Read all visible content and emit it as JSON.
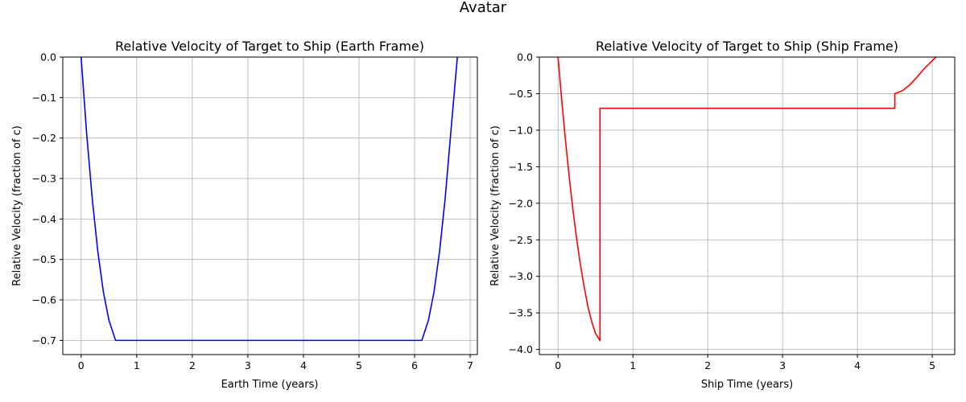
{
  "figure": {
    "suptitle": "Avatar"
  },
  "chart_data": [
    {
      "type": "line",
      "title": "Relative Velocity of Target to Ship (Earth Frame)",
      "xlabel": "Earth Time (years)",
      "ylabel": "Relative Velocity (fraction of c)",
      "xlim": [
        -0.33,
        7.13
      ],
      "ylim": [
        -0.735,
        0.0
      ],
      "xticks": [
        0,
        1,
        2,
        3,
        4,
        5,
        6,
        7
      ],
      "yticks": [
        0.0,
        -0.1,
        -0.2,
        -0.3,
        -0.4,
        -0.5,
        -0.6,
        -0.7
      ],
      "xtick_labels": [
        "0",
        "1",
        "2",
        "3",
        "4",
        "5",
        "6",
        "7"
      ],
      "ytick_labels": [
        "0.0",
        "−0.1",
        "−0.2",
        "−0.3",
        "−0.4",
        "−0.5",
        "−0.6",
        "−0.7"
      ],
      "grid": true,
      "series": [
        {
          "color": "#0000ff",
          "x": [
            0.0,
            0.1,
            0.2,
            0.3,
            0.4,
            0.5,
            0.62,
            1.0,
            2.0,
            3.0,
            4.0,
            5.0,
            6.0,
            6.13,
            6.25,
            6.35,
            6.45,
            6.55,
            6.65,
            6.77
          ],
          "y": [
            0.0,
            -0.19,
            -0.35,
            -0.48,
            -0.58,
            -0.65,
            -0.7,
            -0.7,
            -0.7,
            -0.7,
            -0.7,
            -0.7,
            -0.7,
            -0.7,
            -0.65,
            -0.58,
            -0.48,
            -0.35,
            -0.19,
            0.0
          ]
        }
      ]
    },
    {
      "type": "line",
      "title": "Relative Velocity of Target to Ship (Ship Frame)",
      "xlabel": "Ship Time (years)",
      "ylabel": "Relative Velocity (fraction of c)",
      "xlim": [
        -0.25,
        5.3
      ],
      "ylim": [
        -4.07,
        0.0
      ],
      "xticks": [
        0,
        1,
        2,
        3,
        4,
        5
      ],
      "yticks": [
        0.0,
        -0.5,
        -1.0,
        -1.5,
        -2.0,
        -2.5,
        -3.0,
        -3.5,
        -4.0
      ],
      "xtick_labels": [
        "0",
        "1",
        "2",
        "3",
        "4",
        "5"
      ],
      "ytick_labels": [
        "0.0",
        "−0.5",
        "−1.0",
        "−1.5",
        "−2.0",
        "−2.5",
        "−3.0",
        "−3.5",
        "−4.0"
      ],
      "grid": true,
      "series": [
        {
          "color": "#ff0000",
          "x": [
            0.0,
            0.05,
            0.1,
            0.15,
            0.2,
            0.25,
            0.3,
            0.35,
            0.4,
            0.45,
            0.5,
            0.55,
            0.56,
            0.56,
            1.0,
            2.0,
            3.0,
            4.0,
            4.5,
            4.5,
            4.6,
            4.7,
            4.8,
            4.9,
            5.0,
            5.05
          ],
          "y": [
            0.0,
            -0.6,
            -1.15,
            -1.65,
            -2.1,
            -2.5,
            -2.85,
            -3.15,
            -3.42,
            -3.62,
            -3.78,
            -3.86,
            -3.88,
            -0.7,
            -0.7,
            -0.7,
            -0.7,
            -0.7,
            -0.7,
            -0.5,
            -0.46,
            -0.38,
            -0.27,
            -0.15,
            -0.05,
            0.0
          ]
        }
      ]
    }
  ]
}
